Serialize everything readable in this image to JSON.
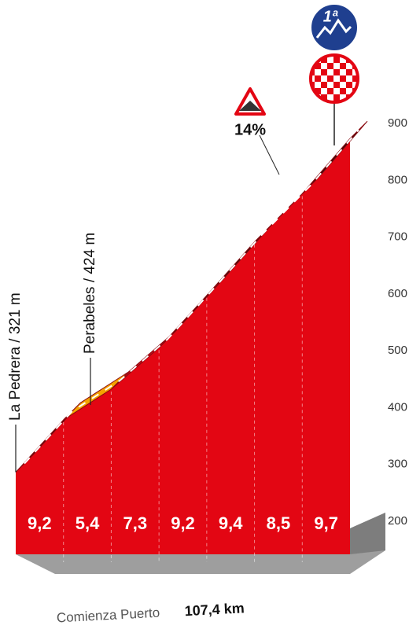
{
  "chart_data": {
    "type": "profile",
    "values": [
      9.2,
      5.4,
      7.3,
      9.2,
      9.4,
      8.5,
      9.7
    ],
    "value_labels": [
      "9,2",
      "5,4",
      "7,3",
      "9,2",
      "9,4",
      "8,5",
      "9,7"
    ],
    "colors": [
      "#3d0a0a",
      "#f5a300",
      "#c40f1b",
      "#3d0a0a",
      "#3d0a0a",
      "#c40f1b",
      "#3d0a0a"
    ],
    "face_color": "#e30613",
    "ylim": [
      200,
      900
    ],
    "yticks": [
      200,
      300,
      400,
      500,
      600,
      700,
      800,
      900
    ],
    "annotations": [
      {
        "label": "La Pedrera / 321 m",
        "value": 321
      },
      {
        "label": "Perabeles / 424 m",
        "value": 424
      }
    ],
    "max_gradient_label": "14%",
    "category": "1ª",
    "start_label": "Comienza Puerto",
    "start_km": "107,4 km"
  }
}
